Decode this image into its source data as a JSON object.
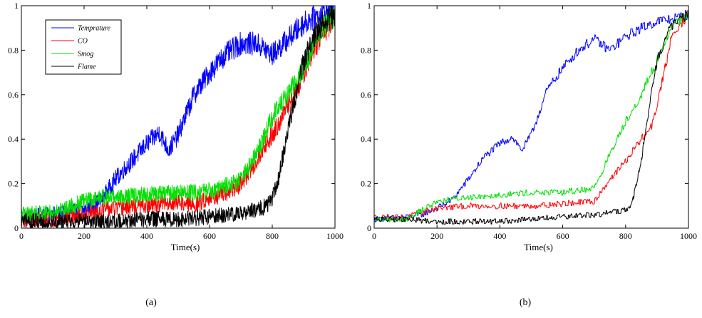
{
  "chart_data": [
    {
      "type": "line",
      "caption": "(a)",
      "xlabel": "Time(s)",
      "ylabel": "",
      "xlim": [
        0,
        1000
      ],
      "ylim": [
        0,
        1
      ],
      "xticks": [
        "0",
        "200",
        "400",
        "600",
        "800",
        "1000"
      ],
      "yticks": [
        "0",
        "0.2",
        "0.4",
        "0.6",
        "0.8",
        "1"
      ],
      "grid": false,
      "legend": {
        "position": "top-left",
        "show": true
      },
      "noise": "high",
      "series": [
        {
          "name": "Temprature",
          "color": "#0000ff",
          "x": [
            0,
            100,
            200,
            250,
            300,
            350,
            400,
            440,
            470,
            500,
            550,
            600,
            650,
            700,
            750,
            800,
            850,
            900,
            950,
            1000
          ],
          "y": [
            0.05,
            0.06,
            0.08,
            0.12,
            0.22,
            0.3,
            0.38,
            0.43,
            0.35,
            0.42,
            0.6,
            0.7,
            0.78,
            0.83,
            0.83,
            0.78,
            0.85,
            0.92,
            0.96,
            0.98
          ]
        },
        {
          "name": "CO",
          "color": "#ff0000",
          "x": [
            0,
            100,
            200,
            250,
            300,
            400,
            500,
            550,
            600,
            650,
            700,
            750,
            780,
            800,
            850,
            880,
            900,
            950,
            1000
          ],
          "y": [
            0.04,
            0.04,
            0.06,
            0.08,
            0.09,
            0.1,
            0.12,
            0.1,
            0.14,
            0.15,
            0.2,
            0.3,
            0.38,
            0.42,
            0.55,
            0.62,
            0.7,
            0.85,
            0.95
          ]
        },
        {
          "name": "Smog",
          "color": "#00e000",
          "x": [
            0,
            100,
            200,
            250,
            300,
            400,
            500,
            550,
            600,
            650,
            700,
            750,
            800,
            850,
            900,
            950,
            1000
          ],
          "y": [
            0.06,
            0.07,
            0.12,
            0.14,
            0.14,
            0.15,
            0.16,
            0.16,
            0.17,
            0.19,
            0.22,
            0.33,
            0.5,
            0.6,
            0.72,
            0.88,
            0.96
          ]
        },
        {
          "name": "Flame",
          "color": "#000000",
          "x": [
            0,
            100,
            200,
            300,
            400,
            500,
            600,
            650,
            700,
            750,
            780,
            800,
            820,
            850,
            880,
            900,
            930,
            960,
            1000
          ],
          "y": [
            0.03,
            0.03,
            0.03,
            0.03,
            0.04,
            0.04,
            0.05,
            0.06,
            0.07,
            0.08,
            0.1,
            0.13,
            0.22,
            0.45,
            0.63,
            0.75,
            0.85,
            0.92,
            0.96
          ]
        }
      ]
    },
    {
      "type": "line",
      "caption": "(b)",
      "xlabel": "Time(s)",
      "ylabel": "",
      "xlim": [
        0,
        1000
      ],
      "ylim": [
        0,
        1
      ],
      "xticks": [
        "0",
        "200",
        "400",
        "600",
        "800",
        "1000"
      ],
      "yticks": [
        "0",
        "0.2",
        "0.4",
        "0.6",
        "0.8",
        "1"
      ],
      "grid": false,
      "legend": {
        "show": false
      },
      "noise": "low",
      "series": [
        {
          "name": "Temprature",
          "color": "#0000ff",
          "x": [
            0,
            100,
            150,
            200,
            250,
            300,
            350,
            400,
            440,
            470,
            500,
            550,
            600,
            650,
            700,
            750,
            800,
            850,
            900,
            950,
            1000
          ],
          "y": [
            0.04,
            0.05,
            0.06,
            0.09,
            0.13,
            0.22,
            0.32,
            0.38,
            0.41,
            0.35,
            0.42,
            0.62,
            0.72,
            0.8,
            0.85,
            0.8,
            0.86,
            0.9,
            0.93,
            0.94,
            0.96
          ]
        },
        {
          "name": "CO",
          "color": "#ff0000",
          "x": [
            0,
            100,
            150,
            200,
            300,
            400,
            500,
            600,
            700,
            750,
            800,
            850,
            880,
            900,
            950,
            1000
          ],
          "y": [
            0.05,
            0.05,
            0.07,
            0.09,
            0.1,
            0.1,
            0.1,
            0.11,
            0.12,
            0.22,
            0.3,
            0.4,
            0.45,
            0.55,
            0.88,
            0.96
          ]
        },
        {
          "name": "Smog",
          "color": "#00e000",
          "x": [
            0,
            100,
            150,
            200,
            300,
            400,
            500,
            600,
            700,
            740,
            760,
            800,
            850,
            900,
            950,
            1000
          ],
          "y": [
            0.04,
            0.04,
            0.08,
            0.12,
            0.14,
            0.15,
            0.16,
            0.16,
            0.18,
            0.3,
            0.36,
            0.48,
            0.6,
            0.75,
            0.92,
            0.96
          ]
        },
        {
          "name": "Flame",
          "color": "#000000",
          "x": [
            0,
            100,
            200,
            300,
            400,
            500,
            600,
            700,
            750,
            800,
            820,
            850,
            870,
            900,
            930,
            960,
            1000
          ],
          "y": [
            0.04,
            0.04,
            0.03,
            0.03,
            0.03,
            0.04,
            0.05,
            0.06,
            0.07,
            0.08,
            0.11,
            0.3,
            0.5,
            0.75,
            0.87,
            0.93,
            0.96
          ]
        }
      ]
    }
  ]
}
